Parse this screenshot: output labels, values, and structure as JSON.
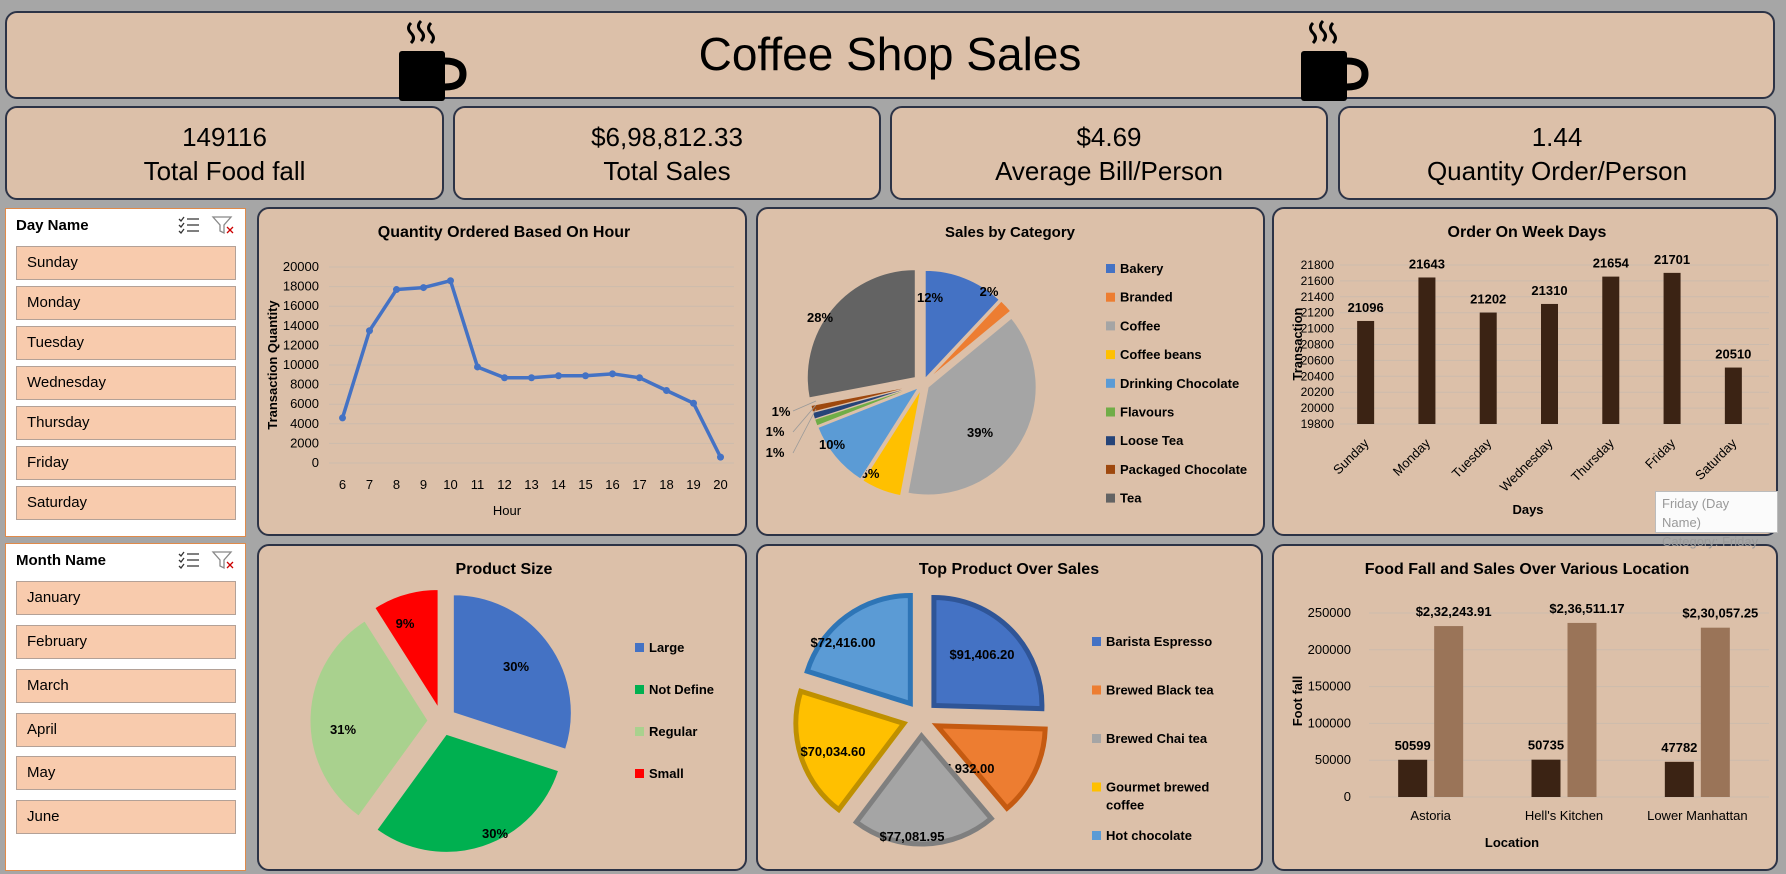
{
  "header": {
    "title": "Coffee Shop Sales"
  },
  "kpis": [
    {
      "value": "149116",
      "label": "Total Food fall"
    },
    {
      "value": "$6,98,812.33",
      "label": "Total Sales"
    },
    {
      "value": "$4.69",
      "label": "Average Bill/Person"
    },
    {
      "value": "1.44",
      "label": "Quantity Order/Person"
    }
  ],
  "slicers": {
    "day": {
      "title": "Day Name",
      "items": [
        "Sunday",
        "Monday",
        "Tuesday",
        "Wednesday",
        "Thursday",
        "Friday",
        "Saturday"
      ]
    },
    "month": {
      "title": "Month Name",
      "items": [
        "January",
        "February",
        "March",
        "April",
        "May",
        "June"
      ]
    }
  },
  "tooltip": {
    "line1": "Friday (Day Name)",
    "line2": "Category: Friday"
  },
  "chart_data": [
    {
      "id": "hour",
      "type": "line",
      "title": "Quantity Ordered Based On Hour",
      "xlabel": "Hour",
      "ylabel": "Transaction Quantity",
      "x": [
        6,
        7,
        8,
        9,
        10,
        11,
        12,
        13,
        14,
        15,
        16,
        17,
        18,
        19,
        20
      ],
      "values": [
        4600,
        13500,
        17700,
        17900,
        18600,
        9800,
        8700,
        8700,
        8900,
        8900,
        9100,
        8700,
        7400,
        6100,
        600
      ],
      "ylim": [
        0,
        20000
      ],
      "yticks": [
        0,
        2000,
        4000,
        6000,
        8000,
        10000,
        12000,
        14000,
        16000,
        18000,
        20000
      ],
      "color": "#4472c4",
      "grid": true
    },
    {
      "id": "category",
      "type": "pie",
      "title": "Sales by Category",
      "categories": [
        "Bakery",
        "Branded",
        "Coffee",
        "Coffee beans",
        "Drinking Chocolate",
        "Flavours",
        "Loose Tea",
        "Packaged Chocolate",
        "Tea"
      ],
      "values": [
        12,
        2,
        39,
        6,
        10,
        1,
        1,
        1,
        28
      ],
      "labels": [
        "12%",
        "2%",
        "39%",
        "6%",
        "10%",
        "1%",
        "1%",
        "1%",
        "28%"
      ],
      "colors": [
        "#4472c4",
        "#ed7d31",
        "#a5a5a5",
        "#ffc000",
        "#5b9bd5",
        "#70ad47",
        "#264478",
        "#9e480e",
        "#636363"
      ],
      "legend": "right"
    },
    {
      "id": "weekdays",
      "type": "bar",
      "title": "Order On Week Days",
      "xlabel": "Days",
      "ylabel": "Transaction",
      "categories": [
        "Sunday",
        "Monday",
        "Tuesday",
        "Wednesday",
        "Thursday",
        "Friday",
        "Saturday"
      ],
      "values": [
        21096,
        21643,
        21202,
        21310,
        21654,
        21701,
        20510
      ],
      "ylim": [
        19800,
        21800
      ],
      "yticks": [
        19800,
        20000,
        20200,
        20400,
        20600,
        20800,
        21000,
        21200,
        21400,
        21600,
        21800
      ],
      "color": "#3b2314",
      "grid": true
    },
    {
      "id": "size",
      "type": "pie",
      "title": "Product Size",
      "categories": [
        "Large",
        "Not Define",
        "Regular",
        "Small"
      ],
      "values": [
        30,
        30,
        31,
        9
      ],
      "labels": [
        "30%",
        "30%",
        "31%",
        "9%"
      ],
      "colors": [
        "#4472c4",
        "#00b050",
        "#a9d18e",
        "#ff0000"
      ],
      "legend": "right"
    },
    {
      "id": "products",
      "type": "pie",
      "title": "Top Product Over Sales",
      "categories": [
        "Barista Espresso",
        "Brewed Black tea",
        "Brewed Chai tea",
        "Gourmet brewed coffee",
        "Hot chocolate"
      ],
      "values": [
        91406.2,
        47932.0,
        77081.95,
        70034.6,
        72416.0
      ],
      "labels": [
        "$91,406.20",
        "$47,932.00",
        "$77,081.95",
        "$70,034.60",
        "$72,416.00"
      ],
      "colors": [
        "#4472c4",
        "#ed7d31",
        "#a5a5a5",
        "#ffc000",
        "#5b9bd5"
      ],
      "legend": "right"
    },
    {
      "id": "location",
      "type": "bar",
      "title": "Food Fall and Sales Over Various Location",
      "xlabel": "Location",
      "ylabel": "Foot fall",
      "categories": [
        "Astoria",
        "Hell's Kitchen",
        "Lower Manhattan"
      ],
      "series": [
        {
          "values": [
            50599,
            50735,
            47782
          ],
          "labels": [
            "50599",
            "50735",
            "47782"
          ],
          "color": "#3b2314"
        },
        {
          "values": [
            232243.91,
            236511.17,
            230057.25
          ],
          "labels": [
            "$2,32,243.91",
            "$2,36,511.17",
            "$2,30,057.25"
          ],
          "color": "#9a7458"
        }
      ],
      "ylim": [
        0,
        250000
      ],
      "yticks": [
        0,
        50000,
        100000,
        150000,
        200000,
        250000
      ],
      "grid": true
    }
  ]
}
